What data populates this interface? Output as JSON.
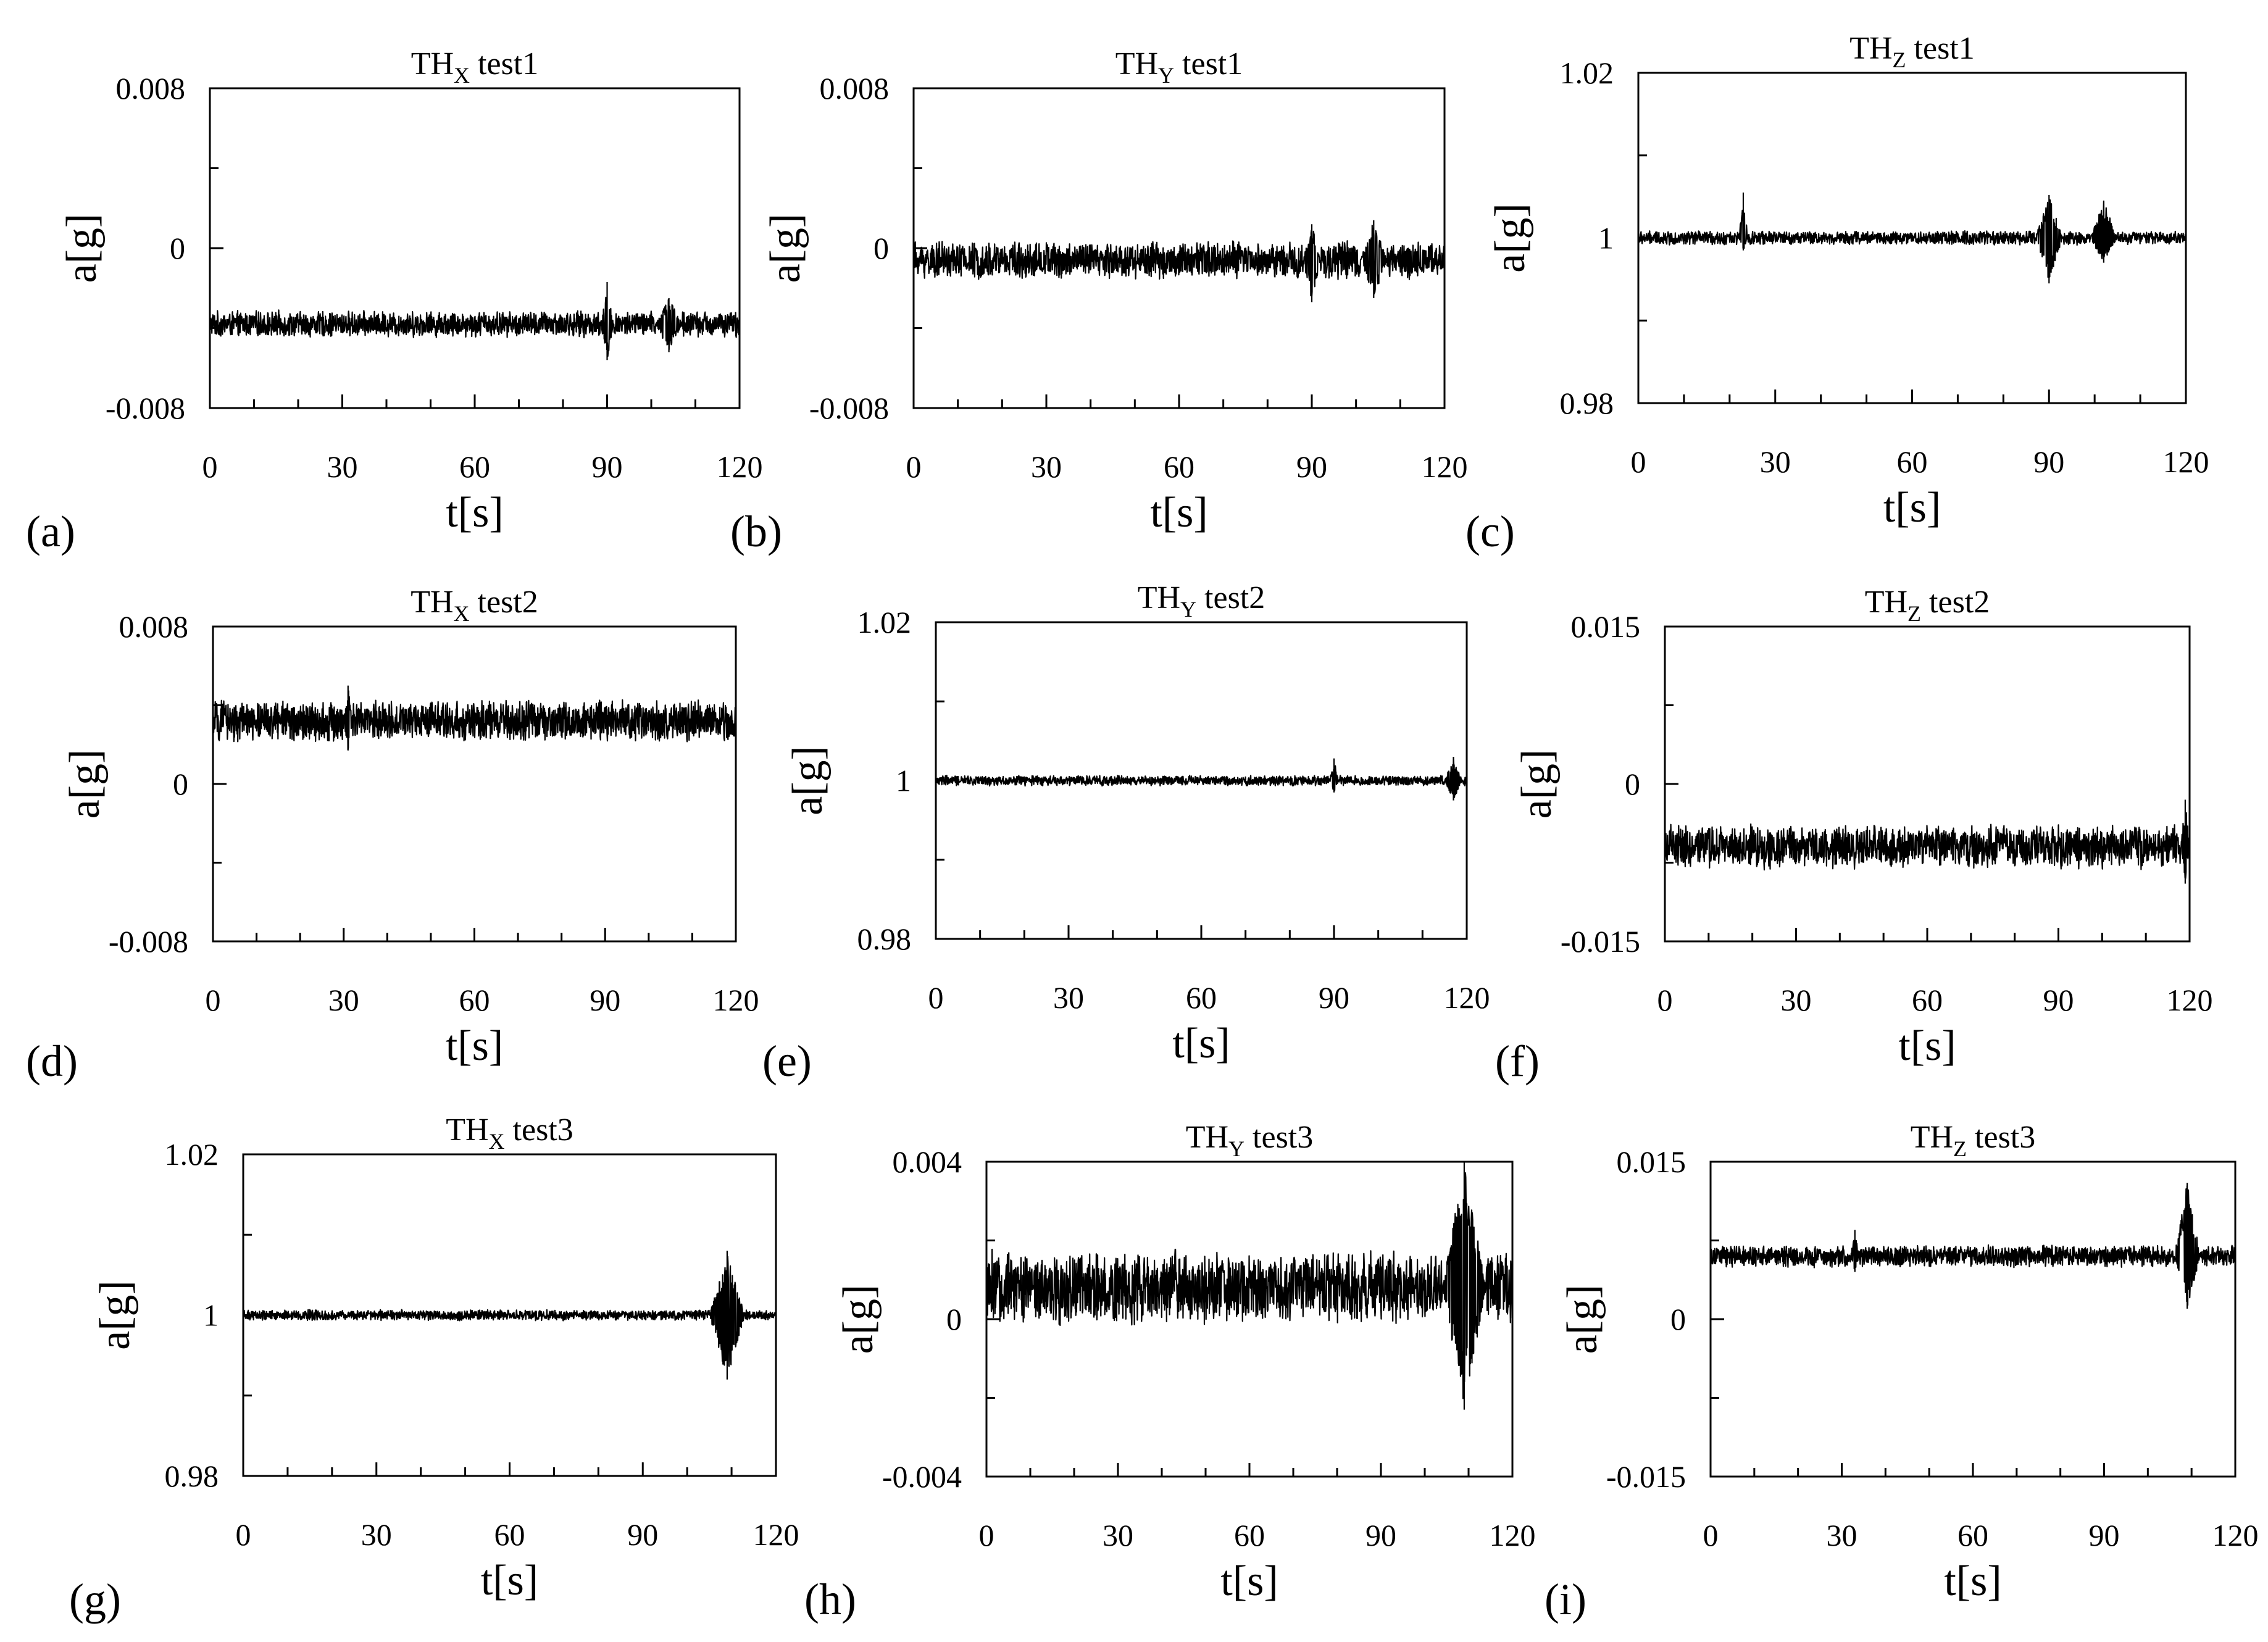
{
  "figure": {
    "panel_letters": [
      "(a)",
      "(b)",
      "(c)",
      "(d)",
      "(e)",
      "(f)",
      "(g)",
      "(h)",
      "(i)"
    ]
  },
  "chart_data": [
    {
      "type": "line",
      "panel": "(a)",
      "title_main": "TH",
      "title_sub": "X",
      "title_rest": " test1",
      "xlabel": "t[s]",
      "ylabel": "a[g]",
      "xlim": [
        0,
        120
      ],
      "ylim": [
        -0.008,
        0.008
      ],
      "x_ticks": [
        0,
        30,
        60,
        90,
        120
      ],
      "x_tick_labels": [
        "0",
        "30",
        "60",
        "90",
        "120"
      ],
      "y_ticks": [
        -0.008,
        0,
        0.008
      ],
      "y_tick_labels": [
        "-0.008",
        "0",
        "0.008"
      ],
      "signal": {
        "mean": -0.0038,
        "amplitude": 0.0007,
        "bursts": [
          {
            "t": 90,
            "width": 1.5,
            "high": -0.0017,
            "low": -0.0056
          },
          {
            "t": 104,
            "width": 3,
            "high": -0.0025,
            "low": -0.0052
          }
        ]
      },
      "color": "#000000"
    },
    {
      "type": "line",
      "panel": "(b)",
      "title_main": "TH",
      "title_sub": "Y",
      "title_rest": " test1",
      "xlabel": "t[s]",
      "ylabel": "a[g]",
      "xlim": [
        0,
        120
      ],
      "ylim": [
        -0.008,
        0.008
      ],
      "x_ticks": [
        0,
        30,
        60,
        90,
        120
      ],
      "x_tick_labels": [
        "0",
        "30",
        "60",
        "90",
        "120"
      ],
      "y_ticks": [
        -0.008,
        0,
        0.008
      ],
      "y_tick_labels": [
        "-0.008",
        "0",
        "0.008"
      ],
      "signal": {
        "mean": -0.0006,
        "amplitude": 0.001,
        "bursts": [
          {
            "t": 90,
            "width": 2,
            "high": 0.0012,
            "low": -0.0027
          },
          {
            "t": 104,
            "width": 3,
            "high": 0.0014,
            "low": -0.0025
          }
        ]
      },
      "color": "#000000"
    },
    {
      "type": "line",
      "panel": "(c)",
      "title_main": "TH",
      "title_sub": "Z",
      "title_rest": " test1",
      "xlabel": "t[s]",
      "ylabel": "a[g]",
      "xlim": [
        0,
        120
      ],
      "ylim": [
        0.98,
        1.02
      ],
      "x_ticks": [
        0,
        30,
        60,
        90,
        120
      ],
      "x_tick_labels": [
        "0",
        "30",
        "60",
        "90",
        "120"
      ],
      "y_ticks": [
        0.98,
        1,
        1.02
      ],
      "y_tick_labels": [
        "0.98",
        "1",
        "1.02"
      ],
      "signal": {
        "mean": 1.0,
        "amplitude": 0.0009,
        "bursts": [
          {
            "t": 23,
            "width": 1,
            "high": 1.0055,
            "low": 0.9985
          },
          {
            "t": 90,
            "width": 3,
            "high": 1.0052,
            "low": 0.9945
          },
          {
            "t": 102,
            "width": 3,
            "high": 1.0045,
            "low": 0.997
          }
        ]
      },
      "color": "#000000"
    },
    {
      "type": "line",
      "panel": "(d)",
      "title_main": "TH",
      "title_sub": "X",
      "title_rest": " test2",
      "xlabel": "t[s]",
      "ylabel": "a[g]",
      "xlim": [
        0,
        120
      ],
      "ylim": [
        -0.008,
        0.008
      ],
      "x_ticks": [
        0,
        30,
        60,
        90,
        120
      ],
      "x_tick_labels": [
        "0",
        "30",
        "60",
        "90",
        "120"
      ],
      "y_ticks": [
        -0.008,
        0,
        0.008
      ],
      "y_tick_labels": [
        "-0.008",
        "0",
        "0.008"
      ],
      "signal": {
        "mean": 0.0032,
        "amplitude": 0.0011,
        "bursts": [
          {
            "t": 31,
            "width": 1,
            "high": 0.005,
            "low": 0.0017
          }
        ]
      },
      "color": "#000000"
    },
    {
      "type": "line",
      "panel": "(e)",
      "title_main": "TH",
      "title_sub": "Y",
      "title_rest": " test2",
      "xlabel": "t[s]",
      "ylabel": "a[g]",
      "xlim": [
        0,
        120
      ],
      "ylim": [
        0.98,
        1.02
      ],
      "x_ticks": [
        0,
        30,
        60,
        90,
        120
      ],
      "x_tick_labels": [
        "0",
        "30",
        "60",
        "90",
        "120"
      ],
      "y_ticks": [
        0.98,
        1,
        1.02
      ],
      "y_tick_labels": [
        "0.98",
        "1",
        "1.02"
      ],
      "signal": {
        "mean": 1.0,
        "amplitude": 0.0007,
        "bursts": [
          {
            "t": 90,
            "width": 1,
            "high": 1.0028,
            "low": 0.9985
          },
          {
            "t": 117,
            "width": 2,
            "high": 1.003,
            "low": 0.9975
          }
        ]
      },
      "color": "#000000"
    },
    {
      "type": "line",
      "panel": "(f)",
      "title_main": "TH",
      "title_sub": "Z",
      "title_rest": " test2",
      "xlabel": "t[s]",
      "ylabel": "a[g]",
      "xlim": [
        0,
        120
      ],
      "ylim": [
        -0.015,
        0.015
      ],
      "x_ticks": [
        0,
        30,
        60,
        90,
        120
      ],
      "x_tick_labels": [
        "0",
        "30",
        "60",
        "90",
        "120"
      ],
      "y_ticks": [
        -0.015,
        0,
        0.015
      ],
      "y_tick_labels": [
        "-0.015",
        "0",
        "0.015"
      ],
      "signal": {
        "mean": -0.006,
        "amplitude": 0.0022,
        "bursts": [
          {
            "t": 119,
            "width": 1,
            "high": -0.0015,
            "low": -0.0095
          }
        ]
      },
      "color": "#000000"
    },
    {
      "type": "line",
      "panel": "(g)",
      "title_main": "TH",
      "title_sub": "X",
      "title_rest": " test3",
      "xlabel": "t[s]",
      "ylabel": "a[g]",
      "xlim": [
        0,
        120
      ],
      "ylim": [
        0.98,
        1.02
      ],
      "x_ticks": [
        0,
        30,
        60,
        90,
        120
      ],
      "x_tick_labels": [
        "0",
        "30",
        "60",
        "90",
        "120"
      ],
      "y_ticks": [
        0.98,
        1,
        1.02
      ],
      "y_tick_labels": [
        "0.98",
        "1",
        "1.02"
      ],
      "signal": {
        "mean": 1.0,
        "amplitude": 0.0007,
        "bursts": [
          {
            "t": 109,
            "width": 4,
            "high": 1.008,
            "low": 0.992
          }
        ]
      },
      "color": "#000000"
    },
    {
      "type": "line",
      "panel": "(h)",
      "title_main": "TH",
      "title_sub": "Y",
      "title_rest": " test3",
      "xlabel": "t[s]",
      "ylabel": "a[g]",
      "xlim": [
        0,
        120
      ],
      "ylim": [
        -0.004,
        0.004
      ],
      "x_ticks": [
        0,
        30,
        60,
        90,
        120
      ],
      "x_tick_labels": [
        "0",
        "30",
        "60",
        "90",
        "120"
      ],
      "y_ticks": [
        -0.004,
        0,
        0.004
      ],
      "y_tick_labels": [
        "-0.004",
        "0",
        "0.004"
      ],
      "signal": {
        "mean": 0.0008,
        "amplitude": 0.001,
        "bursts": [
          {
            "t": 109,
            "width": 5,
            "high": 0.004,
            "low": -0.0023
          }
        ]
      },
      "color": "#000000"
    },
    {
      "type": "line",
      "panel": "(i)",
      "title_main": "TH",
      "title_sub": "Z",
      "title_rest": " test3",
      "xlabel": "t[s]",
      "ylabel": "a[g]",
      "xlim": [
        0,
        120
      ],
      "ylim": [
        -0.015,
        0.015
      ],
      "x_ticks": [
        0,
        30,
        60,
        90,
        120
      ],
      "x_tick_labels": [
        "0",
        "30",
        "60",
        "90",
        "120"
      ],
      "y_ticks": [
        -0.015,
        0,
        0.015
      ],
      "y_tick_labels": [
        "-0.015",
        "0",
        "0.015"
      ],
      "signal": {
        "mean": 0.006,
        "amplitude": 0.0011,
        "bursts": [
          {
            "t": 33,
            "width": 1,
            "high": 0.0085,
            "low": 0.0045
          },
          {
            "t": 109,
            "width": 3,
            "high": 0.013,
            "low": 0.001
          }
        ]
      },
      "color": "#000000"
    }
  ]
}
